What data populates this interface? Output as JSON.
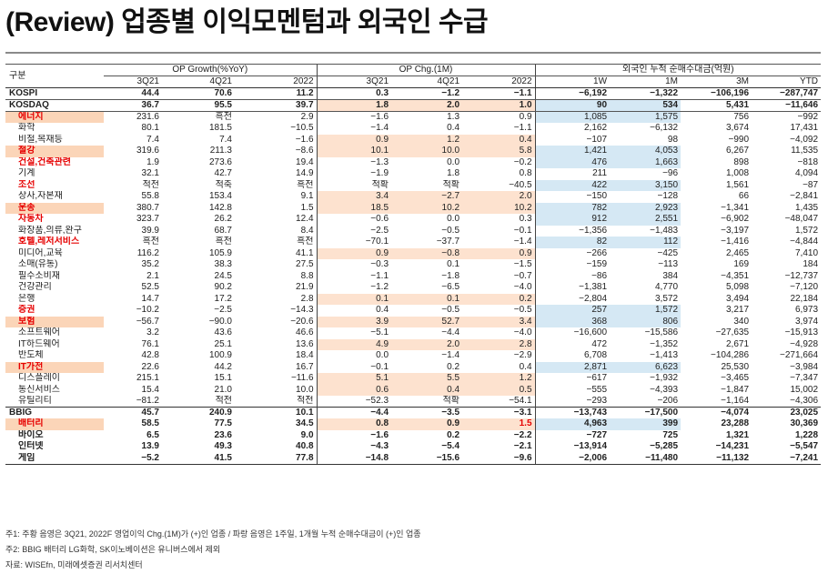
{
  "title": "(Review) 업종별 이익모멘텀과 외국인 수급",
  "header": {
    "gubun": "구분",
    "group_op_growth": "OP Growth(%YoY)",
    "group_op_chg": "OP Chg.(1M)",
    "group_foreign": "외국인 누적 순매수대금(억원)",
    "sub": [
      "3Q21",
      "4Q21",
      "2022",
      "3Q21",
      "4Q21",
      "2022",
      "1W",
      "1M",
      "3M",
      "YTD"
    ]
  },
  "rows": [
    {
      "label": "KOSPI",
      "v": [
        "44.4",
        "70.6",
        "11.2",
        "0.3",
        "−1.2",
        "−1.1",
        "−6,192",
        "−1,322",
        "−106,196",
        "−287,747"
      ]
    },
    {
      "label": "KOSDAQ",
      "v": [
        "36.7",
        "95.5",
        "39.7",
        "1.8",
        "2.0",
        "1.0",
        "90",
        "534",
        "5,431",
        "−11,646"
      ]
    },
    {
      "label": "에너지",
      "v": [
        "231.6",
        "흑전",
        "2.9",
        "−1.6",
        "1.3",
        "0.9",
        "1,085",
        "1,575",
        "756",
        "−992"
      ]
    },
    {
      "label": "화학",
      "v": [
        "80.1",
        "181.5",
        "−10.5",
        "−1.4",
        "0.4",
        "−1.1",
        "2,162",
        "−6,132",
        "3,674",
        "17,431"
      ]
    },
    {
      "label": "비철,목재등",
      "v": [
        "7.4",
        "7.4",
        "−1.6",
        "0.9",
        "1.2",
        "0.4",
        "−107",
        "98",
        "−990",
        "−4,092"
      ]
    },
    {
      "label": "철강",
      "v": [
        "319.6",
        "211.3",
        "−8.6",
        "10.1",
        "10.0",
        "5.8",
        "1,421",
        "4,053",
        "6,267",
        "11,535"
      ]
    },
    {
      "label": "건설,건축관련",
      "v": [
        "1.9",
        "273.6",
        "19.4",
        "−1.3",
        "0.0",
        "−0.2",
        "476",
        "1,663",
        "898",
        "−818"
      ]
    },
    {
      "label": "기계",
      "v": [
        "32.1",
        "42.7",
        "14.9",
        "−1.9",
        "1.8",
        "0.8",
        "211",
        "−96",
        "1,008",
        "4,094"
      ]
    },
    {
      "label": "조선",
      "v": [
        "적전",
        "적축",
        "흑전",
        "적확",
        "적확",
        "−40.5",
        "422",
        "3,150",
        "1,561",
        "−87"
      ]
    },
    {
      "label": "상사,자본재",
      "v": [
        "55.8",
        "153.4",
        "9.1",
        "3.4",
        "−2.7",
        "2.0",
        "−150",
        "−128",
        "66",
        "−2,841"
      ]
    },
    {
      "label": "운송",
      "v": [
        "380.7",
        "142.8",
        "1.5",
        "18.5",
        "10.2",
        "10.2",
        "782",
        "2,923",
        "−1,341",
        "1,435"
      ]
    },
    {
      "label": "자동차",
      "v": [
        "323.7",
        "26.2",
        "12.4",
        "−0.6",
        "0.0",
        "0.3",
        "912",
        "2,551",
        "−6,902",
        "−48,047"
      ]
    },
    {
      "label": "화장품,의류,완구",
      "v": [
        "39.9",
        "68.7",
        "8.4",
        "−2.5",
        "−0.5",
        "−0.1",
        "−1,356",
        "−1,483",
        "−3,197",
        "1,572"
      ]
    },
    {
      "label": "호텔,레저서비스",
      "v": [
        "흑전",
        "흑전",
        "흑전",
        "−70.1",
        "−37.7",
        "−1.4",
        "82",
        "112",
        "−1,416",
        "−4,844"
      ]
    },
    {
      "label": "미디어,교육",
      "v": [
        "116.2",
        "105.9",
        "41.1",
        "0.9",
        "−0.8",
        "0.9",
        "−266",
        "−425",
        "2,465",
        "7,410"
      ]
    },
    {
      "label": "소매(유통)",
      "v": [
        "35.2",
        "38.3",
        "27.5",
        "−0.3",
        "0.1",
        "−1.5",
        "−159",
        "−113",
        "169",
        "184"
      ]
    },
    {
      "label": "필수소비재",
      "v": [
        "2.1",
        "24.5",
        "8.8",
        "−1.1",
        "−1.8",
        "−0.7",
        "−86",
        "384",
        "−4,351",
        "−12,737"
      ]
    },
    {
      "label": "건강관리",
      "v": [
        "52.5",
        "90.2",
        "21.9",
        "−1.2",
        "−6.5",
        "−4.0",
        "−1,381",
        "4,770",
        "5,098",
        "−7,120"
      ]
    },
    {
      "label": "은행",
      "v": [
        "14.7",
        "17.2",
        "2.8",
        "0.1",
        "0.1",
        "0.2",
        "−2,804",
        "3,572",
        "3,494",
        "22,184"
      ]
    },
    {
      "label": "증권",
      "v": [
        "−10.2",
        "−2.5",
        "−14.3",
        "0.4",
        "−0.5",
        "−0.5",
        "257",
        "1,572",
        "3,217",
        "6,973"
      ]
    },
    {
      "label": "보험",
      "v": [
        "−56.7",
        "−90.0",
        "−20.6",
        "3.9",
        "52.7",
        "3.4",
        "368",
        "806",
        "340",
        "3,974"
      ]
    },
    {
      "label": "소프트웨어",
      "v": [
        "3.2",
        "43.6",
        "46.6",
        "−5.1",
        "−4.4",
        "−4.0",
        "−16,600",
        "−15,586",
        "−27,635",
        "−15,913"
      ]
    },
    {
      "label": "IT하드웨어",
      "v": [
        "76.1",
        "25.1",
        "13.6",
        "4.9",
        "2.0",
        "2.8",
        "472",
        "−1,352",
        "2,671",
        "−4,928"
      ]
    },
    {
      "label": "반도체",
      "v": [
        "42.8",
        "100.9",
        "18.4",
        "0.0",
        "−1.4",
        "−2.9",
        "6,708",
        "−1,413",
        "−104,286",
        "−271,664"
      ]
    },
    {
      "label": "IT가전",
      "v": [
        "22.6",
        "44.2",
        "16.7",
        "−0.1",
        "0.2",
        "0.4",
        "2,871",
        "6,623",
        "25,530",
        "−3,984"
      ]
    },
    {
      "label": "디스플레이",
      "v": [
        "215.1",
        "15.1",
        "−11.6",
        "5.1",
        "5.5",
        "1.2",
        "−617",
        "−1,932",
        "−3,465",
        "−7,347"
      ]
    },
    {
      "label": "통신서비스",
      "v": [
        "15.4",
        "21.0",
        "10.0",
        "0.6",
        "0.4",
        "0.5",
        "−555",
        "−4,393",
        "−1,847",
        "15,002"
      ]
    },
    {
      "label": "유틸리티",
      "v": [
        "−81.2",
        "적전",
        "적전",
        "−52.3",
        "적확",
        "−54.1",
        "−293",
        "−206",
        "−1,164",
        "−4,306"
      ]
    },
    {
      "label": "BBIG",
      "v": [
        "45.7",
        "240.9",
        "10.1",
        "−4.4",
        "−3.5",
        "−3.1",
        "−13,743",
        "−17,500",
        "−4,074",
        "23,025"
      ]
    },
    {
      "label": "배터리",
      "v": [
        "58.5",
        "77.5",
        "34.5",
        "0.8",
        "0.9",
        "1.5",
        "4,963",
        "399",
        "23,288",
        "30,369"
      ]
    },
    {
      "label": "바이오",
      "v": [
        "6.5",
        "23.6",
        "9.0",
        "−1.6",
        "0.2",
        "−2.2",
        "−727",
        "725",
        "1,321",
        "1,228"
      ]
    },
    {
      "label": "인터넷",
      "v": [
        "13.9",
        "49.3",
        "40.8",
        "−4.3",
        "−5.4",
        "−2.1",
        "−13,914",
        "−5,285",
        "−14,231",
        "−5,547"
      ]
    },
    {
      "label": "게임",
      "v": [
        "−5.2",
        "41.5",
        "77.8",
        "−14.8",
        "−15.6",
        "−9.6",
        "−2,006",
        "−11,480",
        "−11,132",
        "−7,241"
      ]
    }
  ],
  "notes": [
    "주1: 주황 음영은 3Q21, 2022F 영업이익 Chg.(1M)가 (+)인 업종 / 파랑 음영은 1주일, 1개월 누적 순매수대금이 (+)인 업종",
    "주2: BBIG 배터리 LG화학, SK이노베이션은 유니버스에서 제외",
    "자료: WISEfn, 미래에셋증권 리서치센터"
  ],
  "colors": {
    "orange_shade": "#fde2cf",
    "blue_shade": "#d5e8f4",
    "label_shade": "#fbd5b8",
    "highlight_red": "#e60000"
  }
}
